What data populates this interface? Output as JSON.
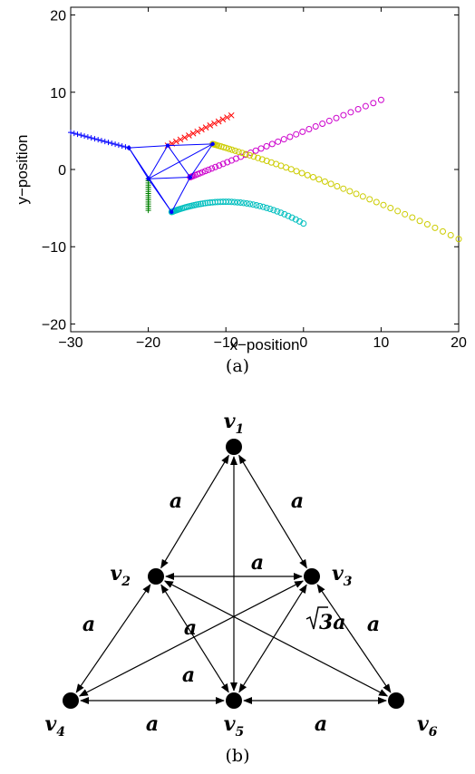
{
  "chart_data": [
    {
      "type": "scatter",
      "title": "",
      "xlabel": "x−position",
      "ylabel": "y−position",
      "xlim": [
        -30,
        20
      ],
      "ylim": [
        -21,
        21
      ],
      "xticks": [
        -30,
        -20,
        -10,
        0,
        10,
        20
      ],
      "yticks": [
        -20,
        -10,
        0,
        10,
        20
      ],
      "xtick_labels": [
        "−30",
        "−20",
        "−10",
        "0",
        "10",
        "20"
      ],
      "ytick_labels": [
        "−20",
        "−10",
        "0",
        "10",
        "20"
      ],
      "caption": "(a)",
      "grid": false,
      "formation_color": "#0000ff",
      "formation": [
        {
          "label": "",
          "x": -17.5,
          "y": 3.1
        },
        {
          "label": "",
          "x": -22.5,
          "y": 2.8
        },
        {
          "label": "",
          "x": -14.6,
          "y": -1.0
        },
        {
          "label": "",
          "x": -20.0,
          "y": -1.2
        },
        {
          "label": "",
          "x": -17.0,
          "y": -5.5
        },
        {
          "label": "",
          "x": -11.7,
          "y": 3.3
        }
      ],
      "formation_links": [
        [
          0,
          1
        ],
        [
          0,
          2
        ],
        [
          0,
          3
        ],
        [
          0,
          5
        ],
        [
          1,
          3
        ],
        [
          1,
          4
        ],
        [
          2,
          3
        ],
        [
          2,
          4
        ],
        [
          2,
          5
        ],
        [
          3,
          4
        ],
        [
          3,
          5
        ]
      ],
      "series": [
        {
          "color": "#0000ff",
          "marker": "plus",
          "x_start": -30,
          "y_start": 4.8,
          "x_end": -22.5,
          "y_end": 2.8,
          "count": 18
        },
        {
          "color": "#ff0000",
          "marker": "x",
          "x_start": -17.5,
          "y_start": 3.1,
          "x_end": -9.3,
          "y_end": 7.0,
          "count": 16
        },
        {
          "color": "#008000",
          "marker": "plus",
          "x_start": -20.0,
          "y_start": -1.2,
          "x_end": -20.0,
          "y_end": -5.3,
          "count": 16
        },
        {
          "color": "#cc00cc",
          "marker": "circle",
          "x_start": -14.6,
          "y_start": -1.0,
          "x_end": 10.0,
          "y_end": 9.0,
          "count": 40
        },
        {
          "color": "#cccc00",
          "marker": "circle",
          "x_start": -11.7,
          "y_start": 3.3,
          "x_end": 20.0,
          "y_end": -9.0,
          "count": 50
        },
        {
          "color": "#00bfbf",
          "marker": "circle",
          "x_start": -17.0,
          "y_start": -5.5,
          "x_end": 0.0,
          "y_end": -7.0,
          "count": 55
        }
      ]
    },
    {
      "type": "graph",
      "caption": "(b)",
      "nodes": [
        {
          "id": "v1",
          "base": "v",
          "sub": "1"
        },
        {
          "id": "v2",
          "base": "v",
          "sub": "2"
        },
        {
          "id": "v3",
          "base": "v",
          "sub": "3"
        },
        {
          "id": "v4",
          "base": "v",
          "sub": "4"
        },
        {
          "id": "v5",
          "base": "v",
          "sub": "5"
        },
        {
          "id": "v6",
          "base": "v",
          "sub": "6"
        }
      ],
      "edges": [
        {
          "from": "v1",
          "to": "v2",
          "label": "a"
        },
        {
          "from": "v1",
          "to": "v3",
          "label": "a"
        },
        {
          "from": "v1",
          "to": "v5",
          "label": ""
        },
        {
          "from": "v2",
          "to": "v3",
          "label": "a"
        },
        {
          "from": "v2",
          "to": "v4",
          "label": "a"
        },
        {
          "from": "v2",
          "to": "v5",
          "label": "a"
        },
        {
          "from": "v2",
          "to": "v6",
          "label": ""
        },
        {
          "from": "v3",
          "to": "v4",
          "label": ""
        },
        {
          "from": "v3",
          "to": "v5",
          "label": "a"
        },
        {
          "from": "v3",
          "to": "v6",
          "label": "a"
        },
        {
          "from": "v4",
          "to": "v5",
          "label": "a"
        },
        {
          "from": "v5",
          "to": "v6",
          "label": "a"
        }
      ],
      "extra_labels": {
        "sqrt3a": "3a"
      }
    }
  ]
}
